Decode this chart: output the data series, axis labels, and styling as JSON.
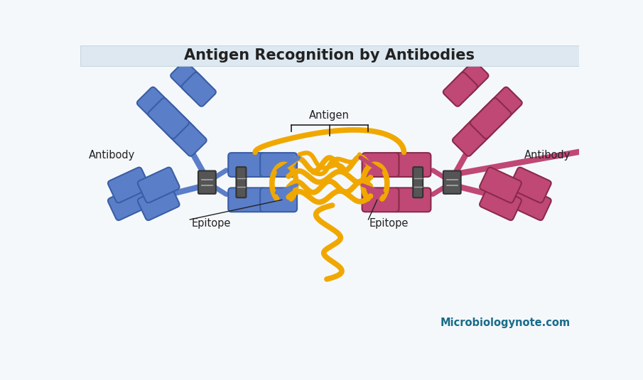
{
  "title": "Antigen Recognition by Antibodies",
  "title_fontsize": 15,
  "title_fontweight": "bold",
  "title_bg": "#dde8f0",
  "main_bg": "#f5f8fb",
  "blue_color": "#5b7ec9",
  "blue_edge": "#3a5ea5",
  "red_color": "#c04875",
  "red_edge": "#8a2a4a",
  "gold_color": "#f0a800",
  "gold_edge": "#c88000",
  "hinge_color": "#555555",
  "hinge_edge": "#333333",
  "text_color": "#222222",
  "watermark_color": "#1a6b8a",
  "label_antibody_left": "Antibody",
  "label_antibody_right": "Antibody",
  "label_antigen": "Antigen",
  "label_epitope_left": "Epitope",
  "label_epitope_right": "Epitope",
  "watermark": "Microbiologynote.com"
}
